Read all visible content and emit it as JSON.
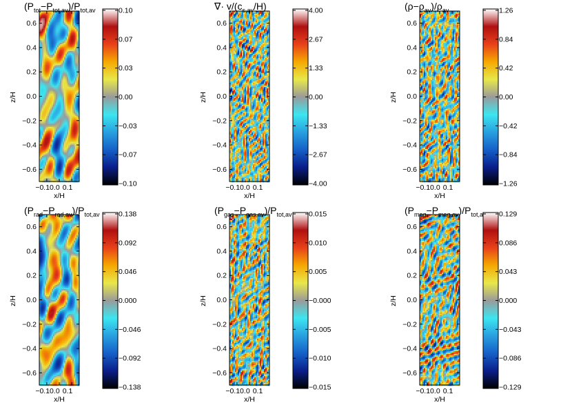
{
  "chart_data": [
    {
      "type": "heatmap",
      "title": {
        "base": "(P",
        "parts": [
          [
            "tot",
            "sub"
          ],
          [
            "−P",
            ""
          ],
          [
            "tot,av",
            "sub"
          ],
          [
            ")/P",
            ""
          ],
          [
            "tot,av",
            "sub"
          ]
        ]
      },
      "xlabel": "x/H",
      "ylabel": "z/H",
      "xticks": [
        "−0.1",
        "0.0",
        "0.1"
      ],
      "yticks": [
        "0.6",
        "0.4",
        "0.2",
        "0.0",
        "−0.2",
        "−0.4",
        "−0.6"
      ],
      "colorbar_ticks": [
        "0.10",
        "0.07",
        "0.03",
        "0.00",
        "−0.03",
        "−0.07",
        "−0.10"
      ],
      "colorbar_range": [
        -0.1,
        0.1
      ],
      "field_style": "smooth"
    },
    {
      "type": "heatmap",
      "title": {
        "base": "∇· v/(c",
        "parts": [
          [
            "s,av",
            "sub"
          ],
          [
            "/H)",
            ""
          ]
        ]
      },
      "xlabel": "x/H",
      "ylabel": "z/H",
      "xticks": [
        "−0.1",
        "0.0",
        "0.1"
      ],
      "yticks": [
        "0.6",
        "0.4",
        "0.2",
        "0.0",
        "−0.2",
        "−0.4",
        "−0.6"
      ],
      "colorbar_ticks": [
        "4.00",
        "2.67",
        "1.33",
        "0.00",
        "−1.33",
        "−2.67",
        "−4.00"
      ],
      "colorbar_range": [
        -4.0,
        4.0
      ],
      "field_style": "filamentary"
    },
    {
      "type": "heatmap",
      "title": {
        "base": "(ρ−ρ",
        "parts": [
          [
            "av",
            "sub"
          ],
          [
            ")/ρ",
            ""
          ],
          [
            "av",
            "sub"
          ]
        ]
      },
      "xlabel": "x/H",
      "ylabel": "z/H",
      "xticks": [
        "−0.1",
        "0.0",
        "0.1"
      ],
      "yticks": [
        "0.6",
        "0.4",
        "0.2",
        "0.0",
        "−0.2",
        "−0.4",
        "−0.6"
      ],
      "colorbar_ticks": [
        "1.26",
        "0.84",
        "0.42",
        "0.00",
        "−0.42",
        "−0.84",
        "−1.26"
      ],
      "colorbar_range": [
        -1.26,
        1.26
      ],
      "field_style": "filamentary"
    },
    {
      "type": "heatmap",
      "title": {
        "base": "(P",
        "parts": [
          [
            "rad",
            "sub"
          ],
          [
            "−P",
            ""
          ],
          [
            "rad,av",
            "sub"
          ],
          [
            ")/P",
            ""
          ],
          [
            "tot,av",
            "sub"
          ]
        ]
      },
      "xlabel": "x/H",
      "ylabel": "z/H",
      "xticks": [
        "−0.1",
        "0.0",
        "0.1"
      ],
      "yticks": [
        "0.6",
        "0.4",
        "0.2",
        "0.0",
        "−0.2",
        "−0.4",
        "−0.6"
      ],
      "colorbar_ticks": [
        "0.138",
        "0.092",
        "0.046",
        "0.000",
        "−0.046",
        "−0.092",
        "−0.138"
      ],
      "colorbar_range": [
        -0.138,
        0.138
      ],
      "field_style": "smooth"
    },
    {
      "type": "heatmap",
      "title": {
        "base": "(P",
        "parts": [
          [
            "gas",
            "sub"
          ],
          [
            "−P",
            ""
          ],
          [
            "gas,av",
            "sub"
          ],
          [
            ")/P",
            ""
          ],
          [
            "tot,av",
            "sub"
          ]
        ]
      },
      "xlabel": "x/H",
      "ylabel": "z/H",
      "xticks": [
        "−0.1",
        "0.0",
        "0.1"
      ],
      "yticks": [
        "0.6",
        "0.4",
        "0.2",
        "0.0",
        "−0.2",
        "−0.4",
        "−0.6"
      ],
      "colorbar_ticks": [
        "0.015",
        "0.010",
        "0.005",
        "−0.000",
        "−0.005",
        "−0.010",
        "−0.015"
      ],
      "colorbar_range": [
        -0.015,
        0.015
      ],
      "field_style": "filamentary"
    },
    {
      "type": "heatmap",
      "title": {
        "base": "(P",
        "parts": [
          [
            "mag",
            "sub"
          ],
          [
            "−P",
            ""
          ],
          [
            "mag,av",
            "sub"
          ],
          [
            ")/P",
            ""
          ],
          [
            "tot,av",
            "sub"
          ]
        ]
      },
      "xlabel": "x/H",
      "ylabel": "z/H",
      "xticks": [
        "−0.1",
        "0.0",
        "0.1"
      ],
      "yticks": [
        "0.6",
        "0.4",
        "0.2",
        "0.0",
        "−0.2",
        "−0.4",
        "−0.6"
      ],
      "colorbar_ticks": [
        "0.129",
        "0.086",
        "0.043",
        "0.000",
        "−0.043",
        "−0.086",
        "−0.129"
      ],
      "colorbar_range": [
        -0.129,
        0.129
      ],
      "field_style": "mixed"
    }
  ],
  "colormap": [
    "#000000",
    "#0a1e8a",
    "#1560c8",
    "#28a0e0",
    "#3ce6f0",
    "#9a9a9a",
    "#e8e84a",
    "#f5a800",
    "#e8401a",
    "#b01010",
    "#ffffff"
  ]
}
